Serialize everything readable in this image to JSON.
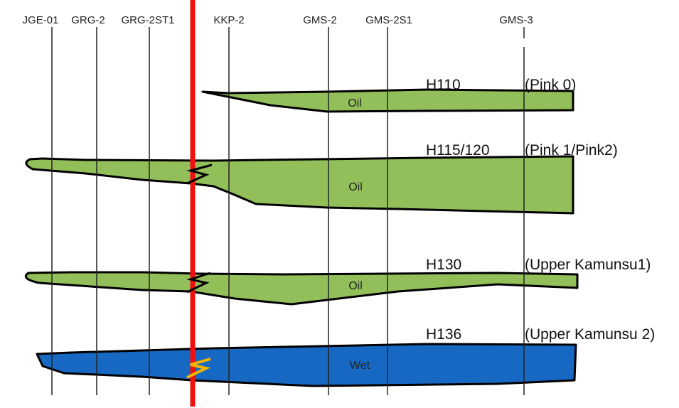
{
  "wells": [
    {
      "name": "JGE-01"
    },
    {
      "name": "GRG-2"
    },
    {
      "name": "GRG-2ST1"
    },
    {
      "name": "KKP-2"
    },
    {
      "name": "GMS-2"
    },
    {
      "name": "GMS-2S1"
    },
    {
      "name": "GMS-3"
    }
  ],
  "layers": [
    {
      "horizon": "H110",
      "unit": "(Pink 0)",
      "fluid": "Oil"
    },
    {
      "horizon": "H115/120",
      "unit": "(Pink 1/Pink2)",
      "fluid": "Oil"
    },
    {
      "horizon": "H130",
      "unit": "(Upper Kamunsu1)",
      "fluid": "Oil"
    },
    {
      "horizon": "H136",
      "unit": "(Upper Kamunsu 2)",
      "fluid": "Wet"
    }
  ]
}
